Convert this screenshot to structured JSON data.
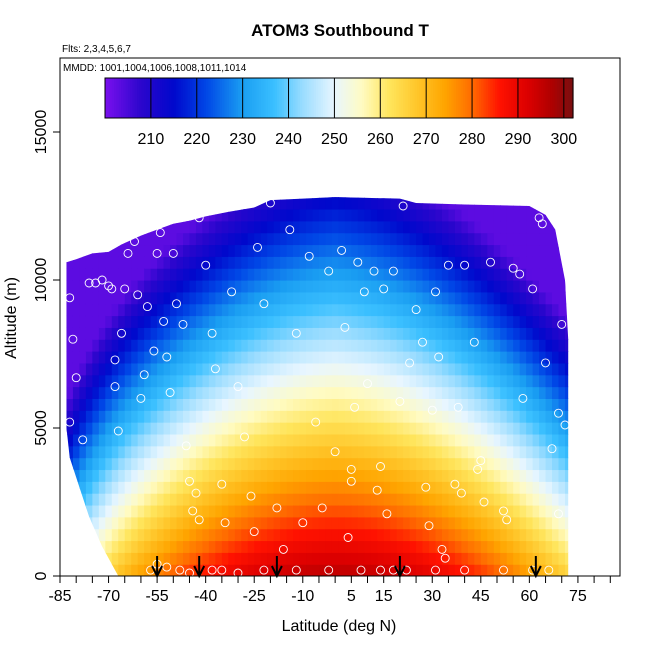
{
  "chart_data": {
    "type": "heatmap",
    "title": "ATOM3 Southbound T",
    "flights_note": "Flts: 2,3,4,5,6,7",
    "dates_note": "MMDD: 1001,1004,1006,1008,1011,1014",
    "xlabel": "Latitude (deg N)",
    "ylabel": "Altitude (m)",
    "xlim": [
      -85,
      88
    ],
    "ylim": [
      0,
      17500
    ],
    "x_ticks": [
      -85,
      -70,
      -55,
      -40,
      -25,
      -10,
      5,
      15,
      30,
      45,
      60,
      75
    ],
    "y_ticks": [
      0,
      5000,
      10000,
      15000
    ],
    "colorbar": {
      "range": [
        200,
        302
      ],
      "ticks": [
        210,
        220,
        230,
        240,
        250,
        260,
        270,
        280,
        290,
        300
      ],
      "stops": [
        {
          "t": 200,
          "color": "#7a10ee"
        },
        {
          "t": 208,
          "color": "#2a06cc"
        },
        {
          "t": 215,
          "color": "#0008cc"
        },
        {
          "t": 222,
          "color": "#0046e6"
        },
        {
          "t": 230,
          "color": "#1a9ef2"
        },
        {
          "t": 237,
          "color": "#3bc0ff"
        },
        {
          "t": 243,
          "color": "#99dcff"
        },
        {
          "t": 250,
          "color": "#e8f6ff"
        },
        {
          "t": 256,
          "color": "#fffbc2"
        },
        {
          "t": 262,
          "color": "#ffe55c"
        },
        {
          "t": 268,
          "color": "#ffc62a"
        },
        {
          "t": 274,
          "color": "#ffa500"
        },
        {
          "t": 280,
          "color": "#ff6b00"
        },
        {
          "t": 286,
          "color": "#ff1200"
        },
        {
          "t": 292,
          "color": "#dd0000"
        },
        {
          "t": 297,
          "color": "#b20000"
        },
        {
          "t": 302,
          "color": "#7a0e10"
        }
      ]
    },
    "coverage": [
      {
        "lat": -83,
        "top": 10600
      },
      {
        "lat": -80,
        "top": 10700
      },
      {
        "lat": -75,
        "top": 10900
      },
      {
        "lat": -70,
        "top": 10950
      },
      {
        "lat": -66,
        "top": 11200
      },
      {
        "lat": -60,
        "top": 11500
      },
      {
        "lat": -55,
        "top": 11700
      },
      {
        "lat": -50,
        "top": 11900
      },
      {
        "lat": -45,
        "top": 12000
      },
      {
        "lat": -40,
        "top": 12150
      },
      {
        "lat": -33,
        "top": 12300
      },
      {
        "lat": -25,
        "top": 12450
      },
      {
        "lat": -20,
        "top": 12700
      },
      {
        "lat": 0,
        "top": 12800
      },
      {
        "lat": 20,
        "top": 12750
      },
      {
        "lat": 25,
        "top": 12600
      },
      {
        "lat": 40,
        "top": 12550
      },
      {
        "lat": 60,
        "top": 12500
      },
      {
        "lat": 65,
        "top": 12200
      },
      {
        "lat": 68,
        "top": 11700
      },
      {
        "lat": 71,
        "top": 10000
      },
      {
        "lat": 72,
        "top": 8000
      }
    ],
    "bottom_edge": [
      {
        "alt": 0,
        "lat": -67
      },
      {
        "alt": 1000,
        "lat": -72
      },
      {
        "alt": 2000,
        "lat": -76
      },
      {
        "alt": 3000,
        "lat": -79
      },
      {
        "alt": 4000,
        "lat": -82
      },
      {
        "alt": 5000,
        "lat": -83
      },
      {
        "alt": 13000,
        "lat": -83
      }
    ],
    "sample_points": [
      [
        -82,
        9400
      ],
      [
        -82,
        5200
      ],
      [
        -81,
        8000
      ],
      [
        -80,
        6700
      ],
      [
        -78,
        4600
      ],
      [
        -76,
        9900
      ],
      [
        -74,
        9900
      ],
      [
        -72,
        10000
      ],
      [
        -70,
        9800
      ],
      [
        -69,
        9700
      ],
      [
        -68,
        7300
      ],
      [
        -68,
        6400
      ],
      [
        -67,
        4900
      ],
      [
        -66,
        8200
      ],
      [
        -65,
        9700
      ],
      [
        -64,
        10900
      ],
      [
        -62,
        11300
      ],
      [
        -61,
        9500
      ],
      [
        -60,
        6000
      ],
      [
        -59,
        6800
      ],
      [
        -58,
        9100
      ],
      [
        -56,
        7600
      ],
      [
        -55,
        10900
      ],
      [
        -54,
        11600
      ],
      [
        -53,
        8600
      ],
      [
        -52,
        7400
      ],
      [
        -51,
        6200
      ],
      [
        -50,
        10900
      ],
      [
        -49,
        9200
      ],
      [
        -47,
        8500
      ],
      [
        -46,
        4400
      ],
      [
        -45,
        3200
      ],
      [
        -44,
        2200
      ],
      [
        -43,
        2800
      ],
      [
        -42,
        1900
      ],
      [
        -42,
        12100
      ],
      [
        -40,
        10500
      ],
      [
        -38,
        8200
      ],
      [
        -37,
        7000
      ],
      [
        -35,
        3100
      ],
      [
        -34,
        1800
      ],
      [
        -32,
        9600
      ],
      [
        -30,
        6400
      ],
      [
        -28,
        4700
      ],
      [
        -26,
        2700
      ],
      [
        -25,
        1500
      ],
      [
        -24,
        11100
      ],
      [
        -22,
        9200
      ],
      [
        -20,
        12600
      ],
      [
        -18,
        2300
      ],
      [
        -16,
        900
      ],
      [
        -14,
        11700
      ],
      [
        -12,
        8200
      ],
      [
        -10,
        1800
      ],
      [
        -8,
        10800
      ],
      [
        -6,
        5200
      ],
      [
        -4,
        2300
      ],
      [
        -2,
        10300
      ],
      [
        0,
        4200
      ],
      [
        2,
        11000
      ],
      [
        3,
        8400
      ],
      [
        4,
        1300
      ],
      [
        5,
        3200
      ],
      [
        5,
        3600
      ],
      [
        6,
        5700
      ],
      [
        7,
        10600
      ],
      [
        9,
        9600
      ],
      [
        10,
        6500
      ],
      [
        12,
        10300
      ],
      [
        13,
        2900
      ],
      [
        14,
        3700
      ],
      [
        15,
        9700
      ],
      [
        16,
        2100
      ],
      [
        18,
        10300
      ],
      [
        20,
        5900
      ],
      [
        21,
        12500
      ],
      [
        23,
        7200
      ],
      [
        25,
        9000
      ],
      [
        27,
        7900
      ],
      [
        28,
        3000
      ],
      [
        29,
        1700
      ],
      [
        30,
        5600
      ],
      [
        31,
        9600
      ],
      [
        32,
        7400
      ],
      [
        33,
        900
      ],
      [
        34,
        600
      ],
      [
        35,
        10500
      ],
      [
        37,
        3100
      ],
      [
        38,
        5700
      ],
      [
        39,
        2800
      ],
      [
        40,
        10500
      ],
      [
        43,
        7900
      ],
      [
        44,
        3600
      ],
      [
        45,
        3900
      ],
      [
        46,
        2500
      ],
      [
        48,
        10600
      ],
      [
        52,
        2200
      ],
      [
        53,
        1900
      ],
      [
        55,
        10400
      ],
      [
        57,
        10200
      ],
      [
        58,
        6000
      ],
      [
        61,
        9700
      ],
      [
        63,
        12100
      ],
      [
        64,
        11900
      ],
      [
        65,
        7200
      ],
      [
        67,
        4300
      ],
      [
        69,
        5500
      ],
      [
        69,
        2100
      ],
      [
        70,
        8500
      ],
      [
        71,
        5100
      ],
      [
        -57,
        200
      ],
      [
        -55,
        400
      ],
      [
        -52,
        300
      ],
      [
        -48,
        200
      ],
      [
        -45,
        100
      ],
      [
        -38,
        200
      ],
      [
        -35,
        200
      ],
      [
        -30,
        100
      ],
      [
        -22,
        200
      ],
      [
        -12,
        200
      ],
      [
        -2,
        200
      ],
      [
        8,
        200
      ],
      [
        14,
        200
      ],
      [
        18,
        200
      ],
      [
        22,
        200
      ],
      [
        31,
        200
      ],
      [
        40,
        200
      ],
      [
        52,
        200
      ],
      [
        61,
        200
      ],
      [
        66,
        200
      ]
    ],
    "arrows_lat": [
      -55,
      -42,
      -18,
      20,
      62
    ]
  }
}
